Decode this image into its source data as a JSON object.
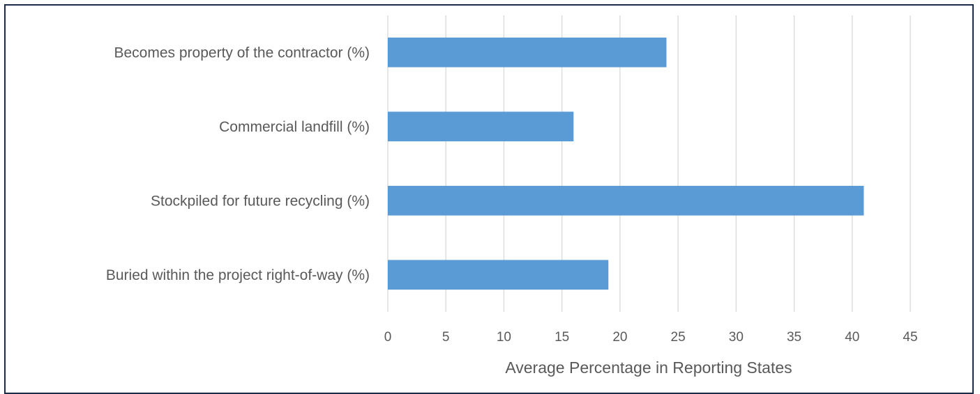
{
  "chart_data": {
    "type": "bar",
    "orientation": "horizontal",
    "categories": [
      "Becomes property of the contractor (%)",
      "Commercial landfill (%)",
      "Stockpiled for future recycling (%)",
      "Buried within the project right-of-way (%)"
    ],
    "values": [
      24,
      16,
      41,
      19
    ],
    "xlabel": "Average Percentage in Reporting States",
    "ylabel": "",
    "xlim": [
      0,
      45
    ],
    "ticks": [
      "0",
      "5",
      "10",
      "15",
      "20",
      "25",
      "30",
      "35",
      "40",
      "45"
    ],
    "grid": true,
    "colors": {
      "bar": "#5b9bd5",
      "grid": "#d9d9d9",
      "text": "#595959",
      "frame": "#1c2a4a"
    }
  }
}
